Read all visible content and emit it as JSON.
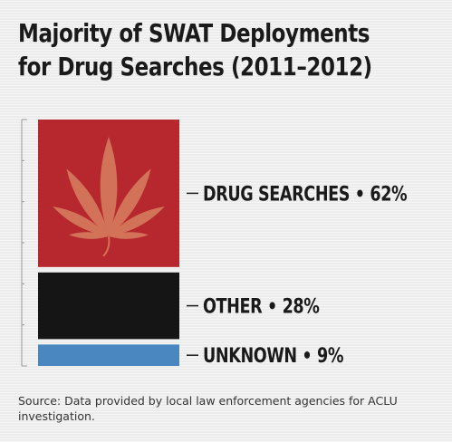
{
  "title": {
    "line1": "Majority of SWAT Deployments",
    "line2": "for Drug Searches (2011–2012)"
  },
  "chart_data": {
    "type": "bar",
    "stacked": true,
    "title": "Majority of SWAT Deployments for Drug Searches (2011–2012)",
    "categories": [
      "DRUG SEARCHES",
      "OTHER",
      "UNKNOWN"
    ],
    "values": [
      62,
      28,
      9
    ],
    "unit": "%",
    "labels": [
      "DRUG SEARCHES • 62%",
      "OTHER • 28%",
      "UNKNOWN • 9%"
    ],
    "colors": [
      "#b7282e",
      "#151515",
      "#4a86c0"
    ],
    "icon": "cannabis-leaf-icon",
    "legend": "none",
    "grid": false
  },
  "source": "Source: Data provided by local law enforcement agencies for ACLU investigation."
}
